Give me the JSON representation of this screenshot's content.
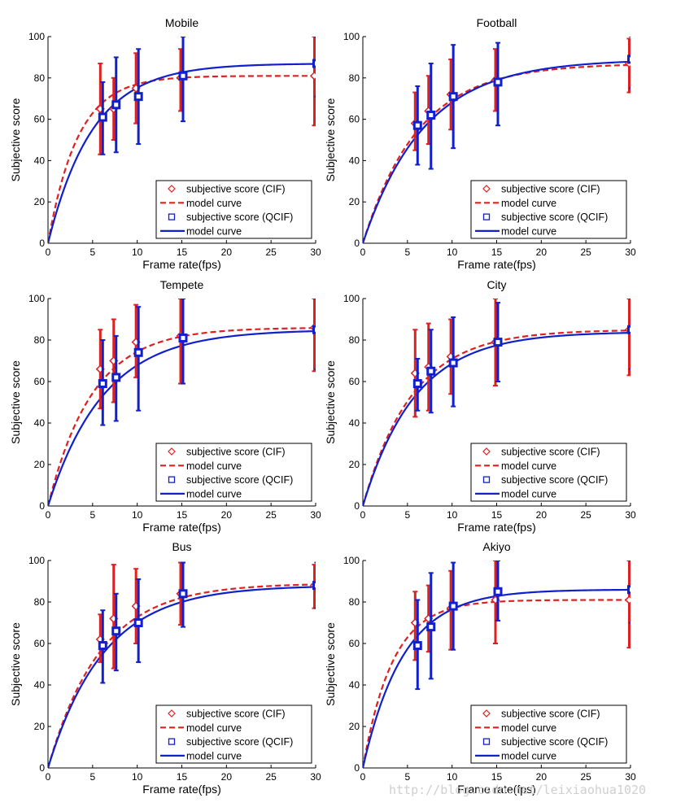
{
  "colors": {
    "cif": "#dd2020",
    "qcif": "#1020cc",
    "axis": "#000000",
    "text": "#000000"
  },
  "watermark": "http://blog.csdn.net/leixiaohua1020",
  "chart_data": [
    {
      "type": "line",
      "title": "Mobile",
      "xlabel": "Frame rate(fps)",
      "ylabel": "Subjective score",
      "xlim": [
        0,
        30
      ],
      "ylim": [
        0,
        100
      ],
      "xticks": [
        0,
        5,
        10,
        15,
        20,
        25,
        30
      ],
      "yticks": [
        0,
        20,
        40,
        60,
        80,
        100
      ],
      "legend": [
        "subjective score (CIF)",
        "model curve",
        "subjective score (QCIF)",
        "model curve"
      ],
      "legend_position": "lower-right",
      "series": [
        {
          "name": "subjective score (CIF)",
          "marker": "diamond",
          "x": [
            6,
            7.5,
            10,
            15,
            30
          ],
          "y": [
            65,
            65,
            75,
            80,
            81
          ],
          "ylow": [
            43,
            50,
            58,
            64,
            57
          ],
          "yhigh": [
            87,
            80,
            92,
            94,
            100
          ]
        },
        {
          "name": "model curve (CIF)",
          "style": "dashed",
          "kind": "model",
          "asymptote": 81,
          "rate": 0.3
        },
        {
          "name": "subjective score (QCIF)",
          "marker": "square",
          "x": [
            6,
            7.5,
            10,
            15,
            30
          ],
          "y": [
            61,
            67,
            71,
            81,
            87
          ],
          "ylow": [
            43,
            44,
            48,
            59,
            71
          ],
          "yhigh": [
            78,
            90,
            94,
            100,
            100
          ]
        },
        {
          "name": "model curve (QCIF)",
          "style": "solid",
          "kind": "model",
          "asymptote": 87,
          "rate": 0.2
        }
      ]
    },
    {
      "type": "line",
      "title": "Football",
      "xlabel": "Frame rate(fps)",
      "ylabel": "Subjective score",
      "xlim": [
        0,
        30
      ],
      "ylim": [
        0,
        100
      ],
      "xticks": [
        0,
        5,
        10,
        15,
        20,
        25,
        30
      ],
      "yticks": [
        0,
        20,
        40,
        60,
        80,
        100
      ],
      "legend": [
        "subjective score (CIF)",
        "model curve",
        "subjective score (QCIF)",
        "model curve"
      ],
      "legend_position": "lower-right",
      "series": [
        {
          "name": "subjective score (CIF)",
          "marker": "diamond",
          "x": [
            6,
            7.5,
            10,
            15,
            30
          ],
          "y": [
            58,
            64,
            72,
            79,
            87
          ],
          "ylow": [
            45,
            48,
            55,
            64,
            73
          ],
          "yhigh": [
            73,
            81,
            89,
            94,
            99
          ]
        },
        {
          "name": "model curve (CIF)",
          "style": "dashed",
          "kind": "model",
          "asymptote": 87,
          "rate": 0.16
        },
        {
          "name": "subjective score (QCIF)",
          "marker": "square",
          "x": [
            6,
            7.5,
            10,
            15,
            30
          ],
          "y": [
            57,
            62,
            71,
            78,
            89
          ],
          "ylow": [
            38,
            36,
            46,
            57,
            75
          ],
          "yhigh": [
            76,
            87,
            96,
            97,
            100
          ]
        },
        {
          "name": "model curve (QCIF)",
          "style": "solid",
          "kind": "model",
          "asymptote": 89,
          "rate": 0.145
        }
      ]
    },
    {
      "type": "line",
      "title": "Tempete",
      "xlabel": "Frame rate(fps)",
      "ylabel": "Subjective score",
      "xlim": [
        0,
        30
      ],
      "ylim": [
        0,
        100
      ],
      "xticks": [
        0,
        5,
        10,
        15,
        20,
        25,
        30
      ],
      "yticks": [
        0,
        20,
        40,
        60,
        80,
        100
      ],
      "legend": [
        "subjective score (CIF)",
        "model curve",
        "subjective score (QCIF)",
        "model curve"
      ],
      "legend_position": "lower-right",
      "series": [
        {
          "name": "subjective score (CIF)",
          "marker": "diamond",
          "x": [
            6,
            7.5,
            10,
            15,
            30
          ],
          "y": [
            66,
            70,
            79,
            82,
            86
          ],
          "ylow": [
            47,
            50,
            62,
            59,
            65
          ],
          "yhigh": [
            85,
            90,
            97,
            100,
            100
          ]
        },
        {
          "name": "model curve (CIF)",
          "style": "dashed",
          "kind": "model",
          "asymptote": 86,
          "rate": 0.2
        },
        {
          "name": "subjective score (QCIF)",
          "marker": "square",
          "x": [
            6,
            7.5,
            10,
            15,
            30
          ],
          "y": [
            59,
            62,
            74,
            81,
            85
          ],
          "ylow": [
            39,
            41,
            46,
            59,
            66
          ],
          "yhigh": [
            80,
            82,
            96,
            100,
            100
          ]
        },
        {
          "name": "model curve (QCIF)",
          "style": "solid",
          "kind": "model",
          "asymptote": 85,
          "rate": 0.16
        }
      ]
    },
    {
      "type": "line",
      "title": "City",
      "xlabel": "Frame rate(fps)",
      "ylabel": "Subjective score",
      "xlim": [
        0,
        30
      ],
      "ylim": [
        0,
        100
      ],
      "xticks": [
        0,
        5,
        10,
        15,
        20,
        25,
        30
      ],
      "yticks": [
        0,
        20,
        40,
        60,
        80,
        100
      ],
      "legend": [
        "subjective score (CIF)",
        "model curve",
        "subjective score (QCIF)",
        "model curve"
      ],
      "legend_position": "lower-right",
      "series": [
        {
          "name": "subjective score (CIF)",
          "marker": "diamond",
          "x": [
            6,
            7.5,
            10,
            15,
            30
          ],
          "y": [
            64,
            67,
            72,
            79,
            85
          ],
          "ylow": [
            43,
            46,
            54,
            58,
            63
          ],
          "yhigh": [
            85,
            88,
            90,
            100,
            100
          ]
        },
        {
          "name": "model curve (CIF)",
          "style": "dashed",
          "kind": "model",
          "asymptote": 85,
          "rate": 0.18
        },
        {
          "name": "subjective score (QCIF)",
          "marker": "square",
          "x": [
            6,
            7.5,
            10,
            15,
            30
          ],
          "y": [
            59,
            65,
            69,
            79,
            85
          ],
          "ylow": [
            46,
            45,
            48,
            60,
            66
          ],
          "yhigh": [
            71,
            85,
            91,
            98,
            100
          ]
        },
        {
          "name": "model curve (QCIF)",
          "style": "solid",
          "kind": "model",
          "asymptote": 84,
          "rate": 0.17
        }
      ]
    },
    {
      "type": "line",
      "title": "Bus",
      "xlabel": "Frame rate(fps)",
      "ylabel": "Subjective score",
      "xlim": [
        0,
        30
      ],
      "ylim": [
        0,
        100
      ],
      "xticks": [
        0,
        5,
        10,
        15,
        20,
        25,
        30
      ],
      "yticks": [
        0,
        20,
        40,
        60,
        80,
        100
      ],
      "legend": [
        "subjective score (CIF)",
        "model curve",
        "subjective score (QCIF)",
        "model curve"
      ],
      "legend_position": "lower-right",
      "series": [
        {
          "name": "subjective score (CIF)",
          "marker": "diamond",
          "x": [
            6,
            7.5,
            10,
            15,
            30
          ],
          "y": [
            62,
            72,
            78,
            84,
            88
          ],
          "ylow": [
            51,
            48,
            60,
            69,
            77
          ],
          "yhigh": [
            74,
            98,
            96,
            99,
            98
          ]
        },
        {
          "name": "model curve (CIF)",
          "style": "dashed",
          "kind": "model",
          "asymptote": 89,
          "rate": 0.17
        },
        {
          "name": "subjective score (QCIF)",
          "marker": "square",
          "x": [
            6,
            7.5,
            10,
            15,
            30
          ],
          "y": [
            59,
            66,
            70,
            84,
            88
          ],
          "ylow": [
            41,
            47,
            51,
            68,
            77
          ],
          "yhigh": [
            76,
            84,
            91,
            99,
            99
          ]
        },
        {
          "name": "model curve (QCIF)",
          "style": "solid",
          "kind": "model",
          "asymptote": 88,
          "rate": 0.16
        }
      ]
    },
    {
      "type": "line",
      "title": "Akiyo",
      "xlabel": "Frame rate(fps)",
      "ylabel": "Subjective score",
      "xlim": [
        0,
        30
      ],
      "ylim": [
        0,
        100
      ],
      "xticks": [
        0,
        5,
        10,
        15,
        20,
        25,
        30
      ],
      "yticks": [
        0,
        20,
        40,
        60,
        80,
        100
      ],
      "legend": [
        "subjective score (CIF)",
        "model curve",
        "subjective score (QCIF)",
        "model curve"
      ],
      "legend_position": "lower-right",
      "series": [
        {
          "name": "subjective score (CIF)",
          "marker": "diamond",
          "x": [
            6,
            7.5,
            10,
            15,
            30
          ],
          "y": [
            70,
            72,
            77,
            81,
            81
          ],
          "ylow": [
            52,
            56,
            57,
            60,
            58
          ],
          "yhigh": [
            85,
            88,
            95,
            100,
            100
          ]
        },
        {
          "name": "model curve (CIF)",
          "style": "dashed",
          "kind": "model",
          "asymptote": 81,
          "rate": 0.3
        },
        {
          "name": "subjective score (QCIF)",
          "marker": "square",
          "x": [
            6,
            7.5,
            10,
            15,
            30
          ],
          "y": [
            59,
            68,
            78,
            85,
            86
          ],
          "ylow": [
            38,
            43,
            57,
            71,
            70
          ],
          "yhigh": [
            81,
            94,
            99,
            100,
            100
          ]
        },
        {
          "name": "model curve (QCIF)",
          "style": "solid",
          "kind": "model",
          "asymptote": 86,
          "rate": 0.22
        }
      ]
    }
  ]
}
